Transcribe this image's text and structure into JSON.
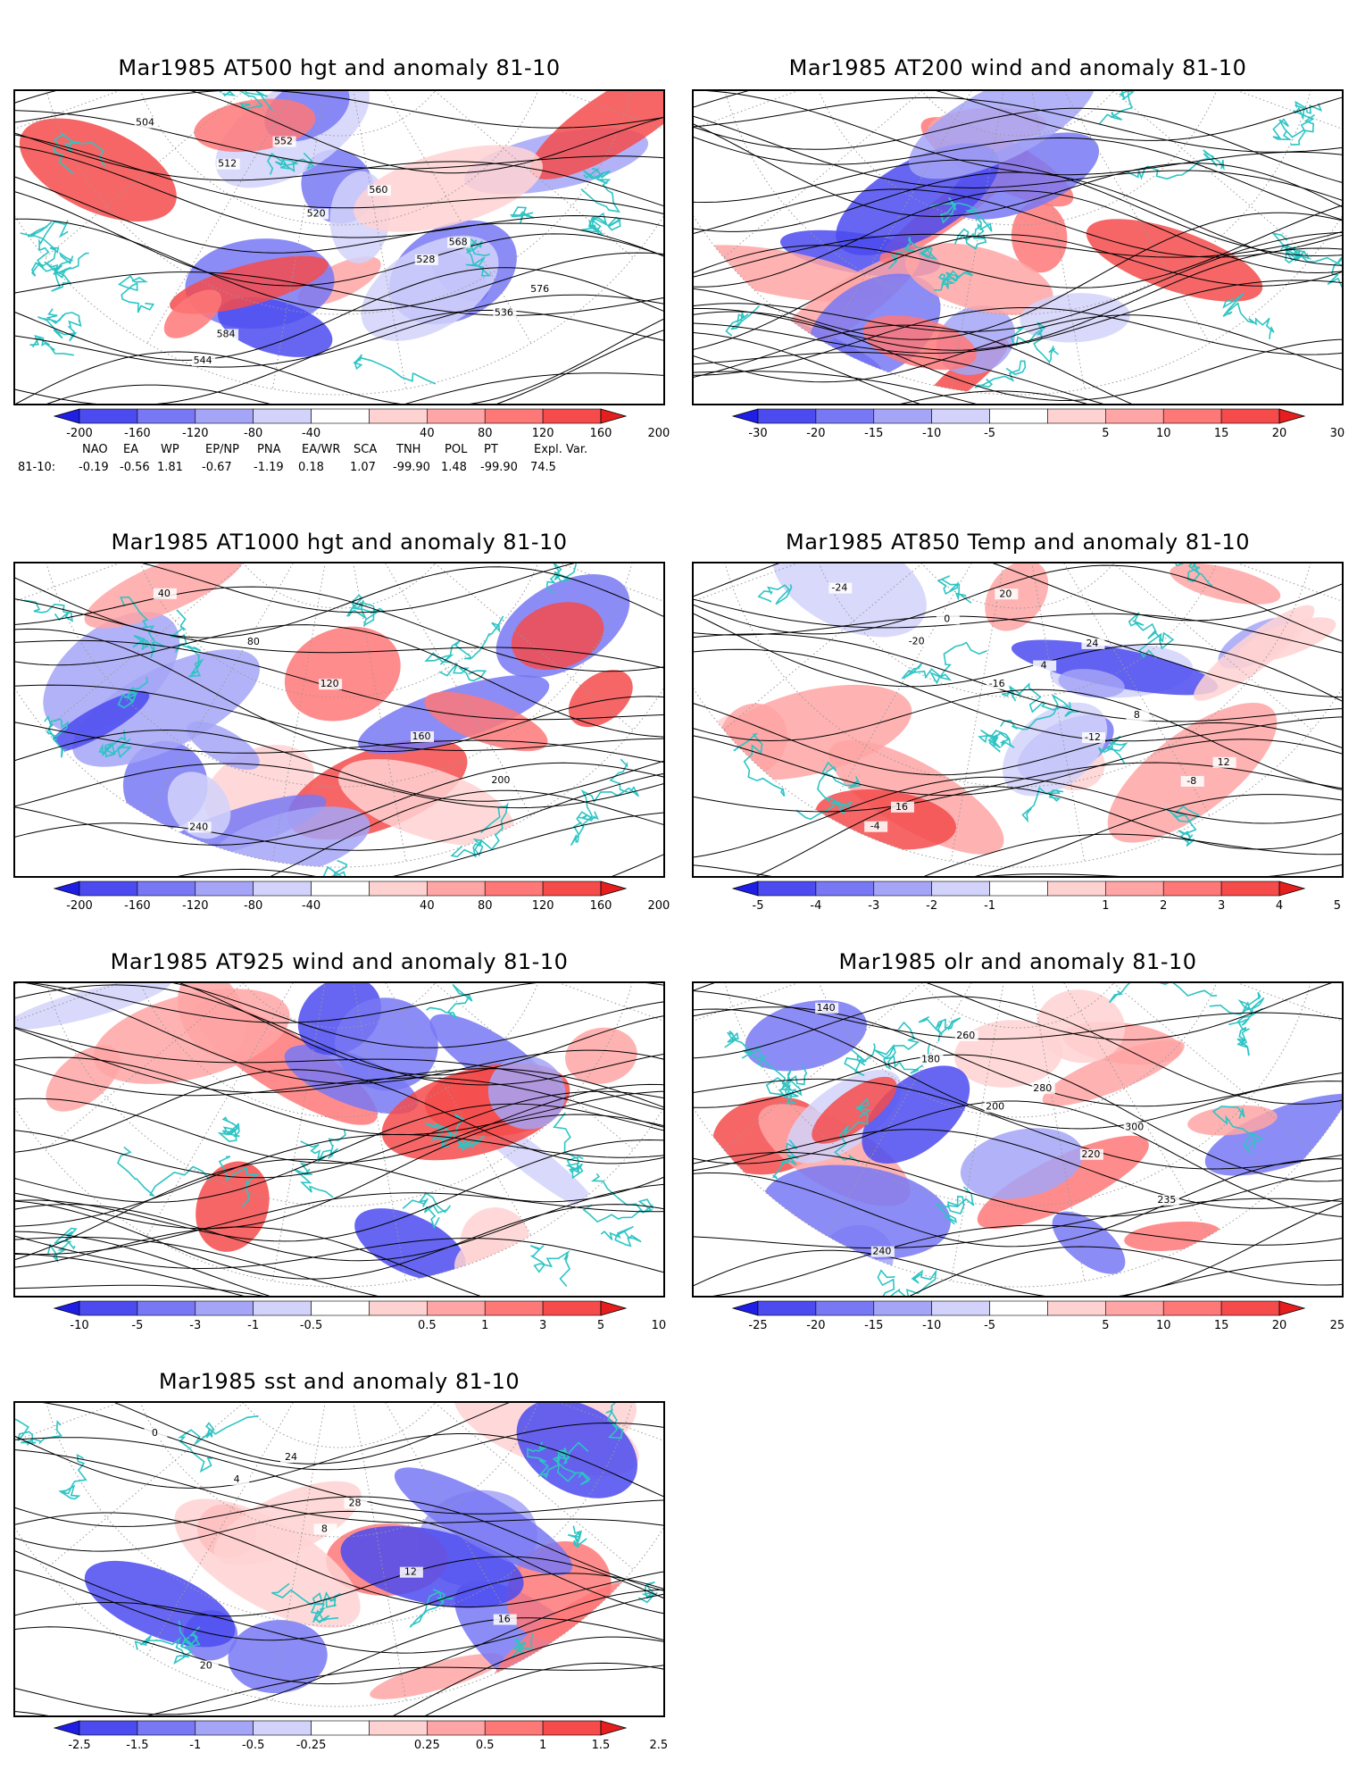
{
  "panels": [
    {
      "id": "p500",
      "title": "Mar1985 AT500 hgt and anomaly 81-10",
      "kind": "height",
      "contour_labels": [
        "504",
        "512",
        "520",
        "528",
        "536",
        "544",
        "552",
        "560",
        "568",
        "576",
        "584"
      ],
      "colorbar": {
        "ticks": [
          "-200",
          "-160",
          "-120",
          "-80",
          "-40",
          "40",
          "80",
          "120",
          "160",
          "200"
        ],
        "colors": [
          "#1e1ee6",
          "#4b4bf0",
          "#7878f5",
          "#a5a5f7",
          "#d2d2fa",
          "#ffffff",
          "#ffd2d2",
          "#ffa5a5",
          "#ff7878",
          "#f54b4b",
          "#e61e1e"
        ]
      }
    },
    {
      "id": "p200",
      "title": "Mar1985 AT200 wind and anomaly 81-10",
      "kind": "wind",
      "contour_labels": [],
      "colorbar": {
        "ticks": [
          "-30",
          "-20",
          "-15",
          "-10",
          "-5",
          "5",
          "10",
          "15",
          "20",
          "30"
        ],
        "colors": [
          "#1e1ee6",
          "#4b4bf0",
          "#7878f5",
          "#a5a5f7",
          "#d2d2fa",
          "#ffffff",
          "#ffd2d2",
          "#ffa5a5",
          "#ff7878",
          "#f54b4b",
          "#e61e1e"
        ]
      }
    },
    {
      "id": "p1000",
      "title": "Mar1985 AT1000 hgt and anomaly 81-10",
      "kind": "height",
      "contour_labels": [
        "40",
        "80",
        "120",
        "160",
        "200",
        "240"
      ],
      "colorbar": {
        "ticks": [
          "-200",
          "-160",
          "-120",
          "-80",
          "-40",
          "40",
          "80",
          "120",
          "160",
          "200"
        ],
        "colors": [
          "#1e1ee6",
          "#4b4bf0",
          "#7878f5",
          "#a5a5f7",
          "#d2d2fa",
          "#ffffff",
          "#ffd2d2",
          "#ffa5a5",
          "#ff7878",
          "#f54b4b",
          "#e61e1e"
        ]
      }
    },
    {
      "id": "p850",
      "title": "Mar1985 AT850 Temp and anomaly 81-10",
      "kind": "height",
      "contour_labels": [
        "-24",
        "-20",
        "-16",
        "-12",
        "-8",
        "-4",
        "0",
        "4",
        "8",
        "12",
        "16",
        "20",
        "24"
      ],
      "colorbar": {
        "ticks": [
          "-5",
          "-4",
          "-3",
          "-2",
          "-1",
          "1",
          "2",
          "3",
          "4",
          "5"
        ],
        "colors": [
          "#1e1ee6",
          "#4b4bf0",
          "#7878f5",
          "#a5a5f7",
          "#d2d2fa",
          "#ffffff",
          "#ffd2d2",
          "#ffa5a5",
          "#ff7878",
          "#f54b4b",
          "#e61e1e"
        ]
      }
    },
    {
      "id": "p925",
      "title": "Mar1985 AT925 wind and anomaly 81-10",
      "kind": "wind",
      "contour_labels": [],
      "colorbar": {
        "ticks": [
          "-10",
          "-5",
          "-3",
          "-1",
          "-0.5",
          "0.5",
          "1",
          "3",
          "5",
          "10"
        ],
        "colors": [
          "#1e1ee6",
          "#4b4bf0",
          "#7878f5",
          "#a5a5f7",
          "#d2d2fa",
          "#ffffff",
          "#ffd2d2",
          "#ffa5a5",
          "#ff7878",
          "#f54b4b",
          "#e61e1e"
        ]
      }
    },
    {
      "id": "polr",
      "title": "Mar1985 olr and anomaly 81-10",
      "kind": "height",
      "contour_labels": [
        "140",
        "180",
        "200",
        "220",
        "235",
        "240",
        "260",
        "280",
        "300"
      ],
      "colorbar": {
        "ticks": [
          "-25",
          "-20",
          "-15",
          "-10",
          "-5",
          "5",
          "10",
          "15",
          "20",
          "25"
        ],
        "colors": [
          "#1e1ee6",
          "#4b4bf0",
          "#7878f5",
          "#a5a5f7",
          "#d2d2fa",
          "#ffffff",
          "#ffd2d2",
          "#ffa5a5",
          "#ff7878",
          "#f54b4b",
          "#e61e1e"
        ]
      }
    },
    {
      "id": "psst",
      "title": "Mar1985 sst and anomaly 81-10",
      "kind": "height",
      "contour_labels": [
        "0",
        "4",
        "8",
        "12",
        "16",
        "20",
        "24",
        "28"
      ],
      "colorbar": {
        "ticks": [
          "-2.5",
          "-1.5",
          "-1",
          "-0.5",
          "-0.25",
          "0.25",
          "0.5",
          "1",
          "1.5",
          "2.5"
        ],
        "colors": [
          "#1e1ee6",
          "#4b4bf0",
          "#7878f5",
          "#a5a5f7",
          "#d2d2fa",
          "#ffffff",
          "#ffd2d2",
          "#ffa5a5",
          "#ff7878",
          "#f54b4b",
          "#e61e1e"
        ]
      }
    }
  ],
  "teleconnections": {
    "headers": [
      "NAO",
      "EA",
      "WP",
      "EP/NP",
      "PNA",
      "EA/WR",
      "SCA",
      "TNH",
      "POL",
      "PT",
      "Expl. Var."
    ],
    "row_label": "81-10:",
    "values": [
      "-0.19",
      "-0.56",
      "1.81",
      "-0.67",
      "-1.19",
      "0.18",
      "1.07",
      "-99.90",
      "1.48",
      "-99.90",
      "74.5"
    ]
  }
}
